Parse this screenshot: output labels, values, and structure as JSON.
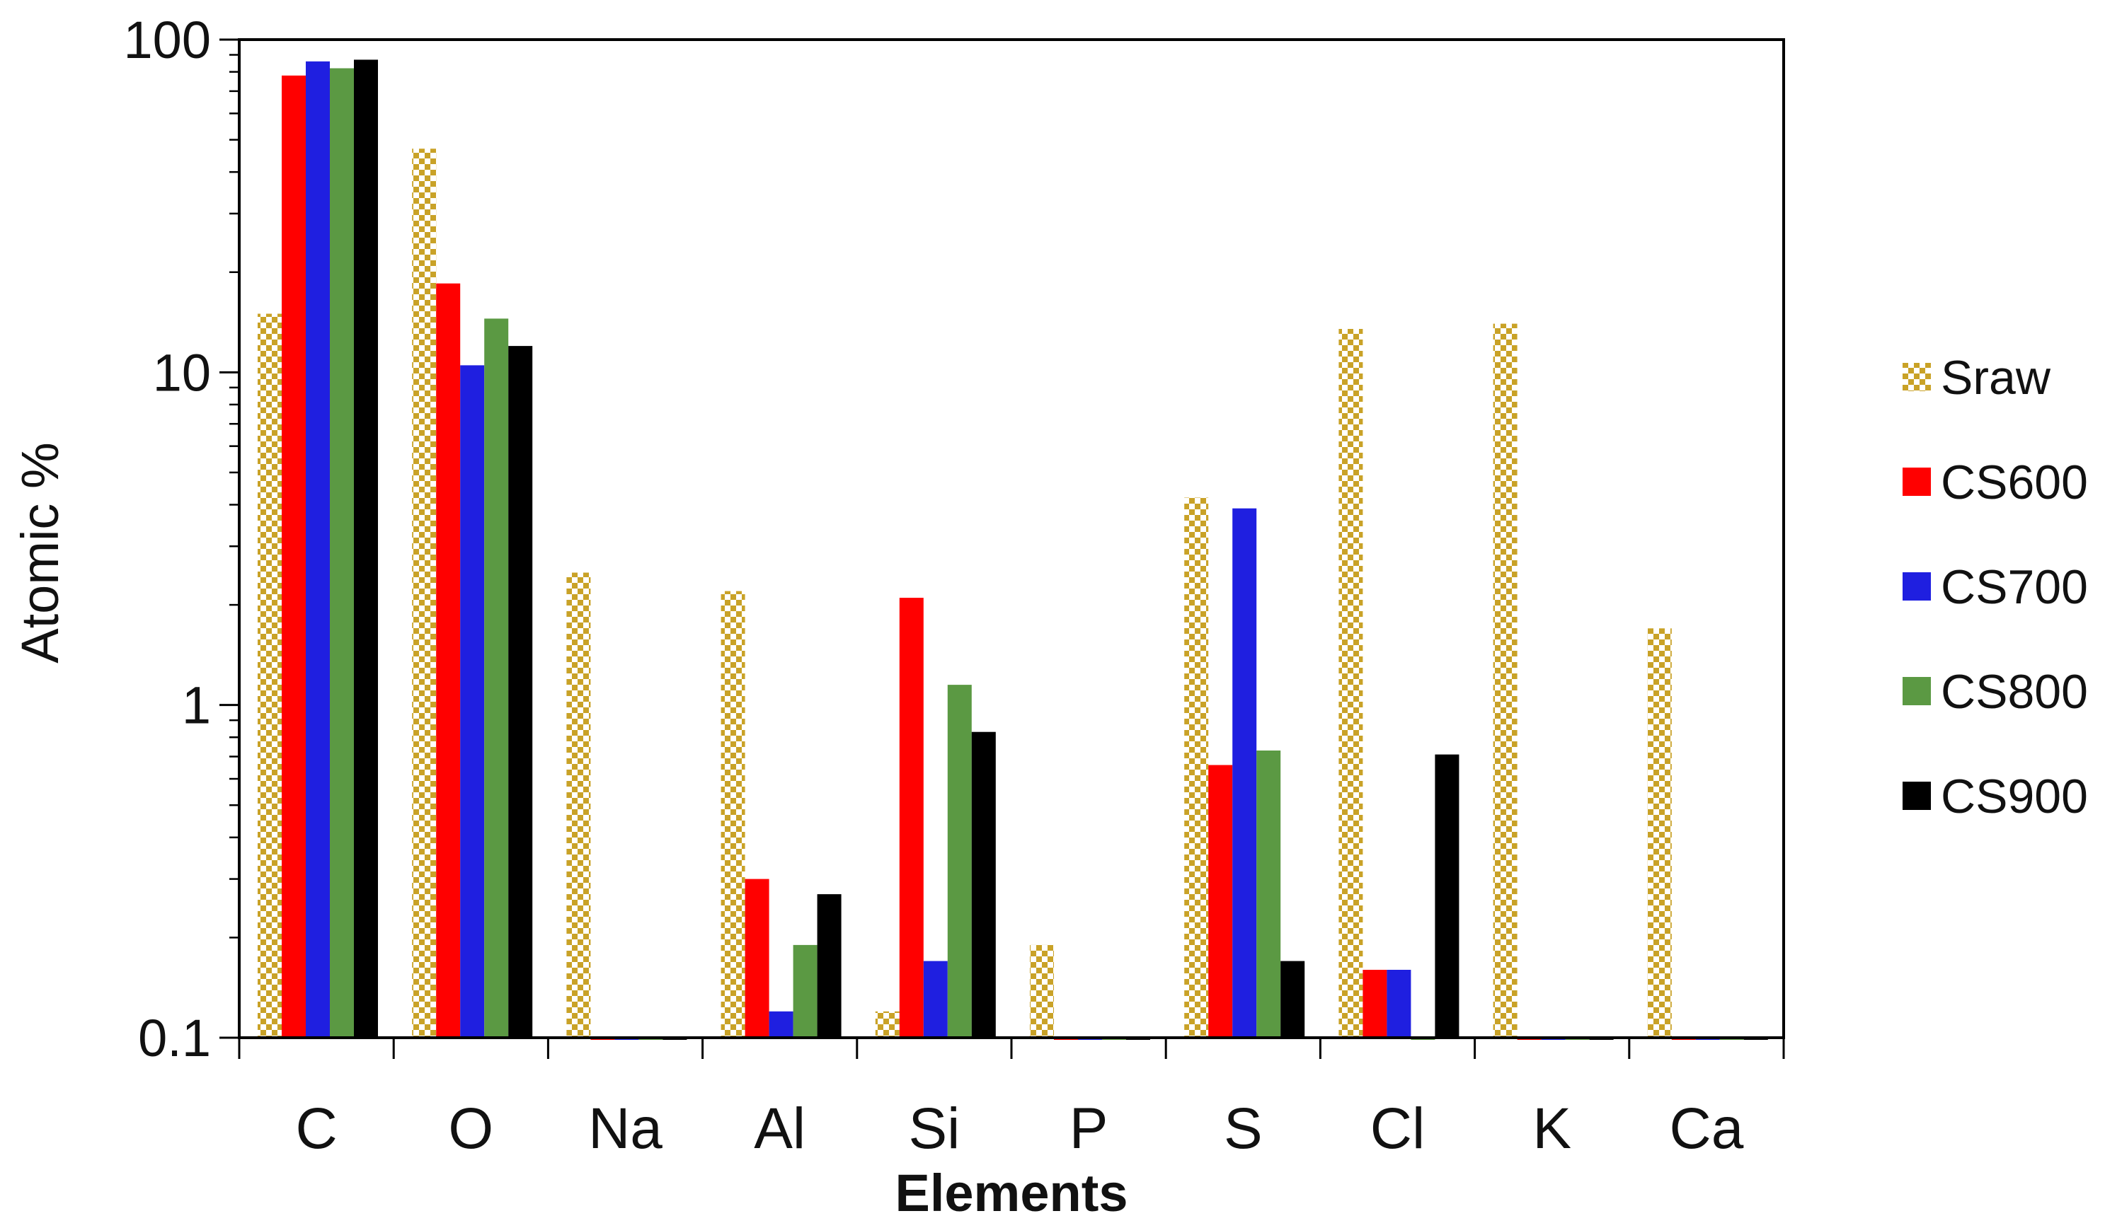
{
  "chart_data": {
    "type": "bar",
    "xlabel": "Elements",
    "ylabel": "Atomic %",
    "yscale": "log",
    "ylim": [
      0.1,
      100
    ],
    "yticks": [
      0.1,
      1,
      10,
      100
    ],
    "ytick_labels": [
      "0.1",
      "1",
      "10",
      "100"
    ],
    "grid": false,
    "legend_position": "right",
    "categories": [
      "C",
      "O",
      "Na",
      "Al",
      "Si",
      "P",
      "S",
      "Cl",
      "K",
      "Ca"
    ],
    "series": [
      {
        "name": "Sraw",
        "color": "#C9A227",
        "pattern": "checker",
        "values": [
          15,
          47,
          2.5,
          2.2,
          0.12,
          0.19,
          4.2,
          13.5,
          14,
          1.7
        ]
      },
      {
        "name": "CS600",
        "color": "#FF0000",
        "pattern": "solid",
        "values": [
          78,
          18.5,
          0.1,
          0.3,
          2.1,
          0.1,
          0.66,
          0.16,
          0.1,
          0.1
        ]
      },
      {
        "name": "CS700",
        "color": "#1F1FE0",
        "pattern": "solid",
        "values": [
          86,
          10.5,
          0.1,
          0.12,
          0.17,
          0.1,
          3.9,
          0.16,
          0.1,
          0.1
        ]
      },
      {
        "name": "CS800",
        "color": "#5B9943",
        "pattern": "solid",
        "values": [
          82,
          14.5,
          0.1,
          0.19,
          1.15,
          0.1,
          0.73,
          0.1,
          0.1,
          0.1
        ]
      },
      {
        "name": "CS900",
        "color": "#000000",
        "pattern": "solid",
        "values": [
          87,
          12,
          0.1,
          0.27,
          0.83,
          0.1,
          0.17,
          0.71,
          0.1,
          0.1
        ]
      }
    ]
  }
}
